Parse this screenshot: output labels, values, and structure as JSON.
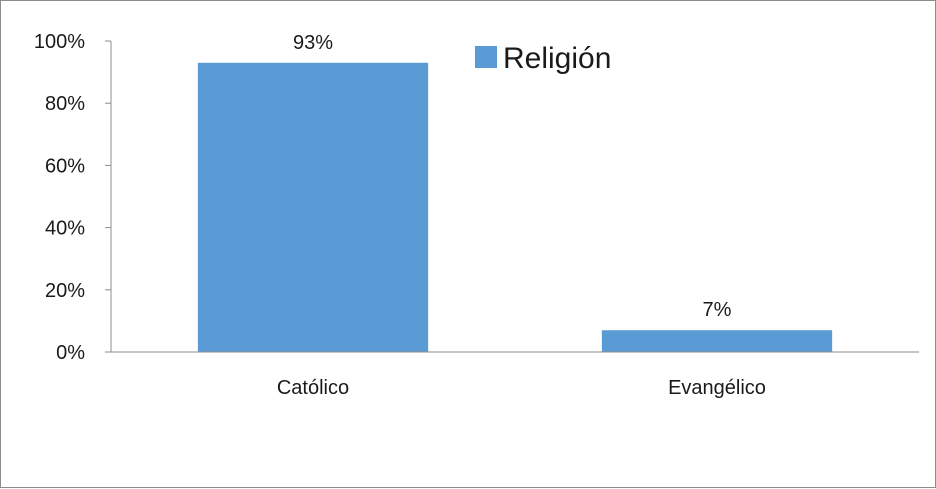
{
  "chart_data": {
    "type": "bar",
    "categories": [
      "Católico",
      "Evangélico"
    ],
    "series": [
      {
        "name": "Religión",
        "values": [
          93,
          7
        ],
        "labels": [
          "93%",
          "7%"
        ]
      }
    ],
    "ylim": [
      0,
      100
    ],
    "yticks": [
      0,
      20,
      40,
      60,
      80,
      100
    ],
    "ytick_labels": [
      "0%",
      "20%",
      "40%",
      "60%",
      "80%",
      "100%"
    ],
    "legend": {
      "label": "Religión",
      "position": "top-right",
      "color": "#5b9bd5"
    },
    "grid": false,
    "bar_color": "#5b9bd5",
    "axis_color": "#8c8c8c"
  }
}
